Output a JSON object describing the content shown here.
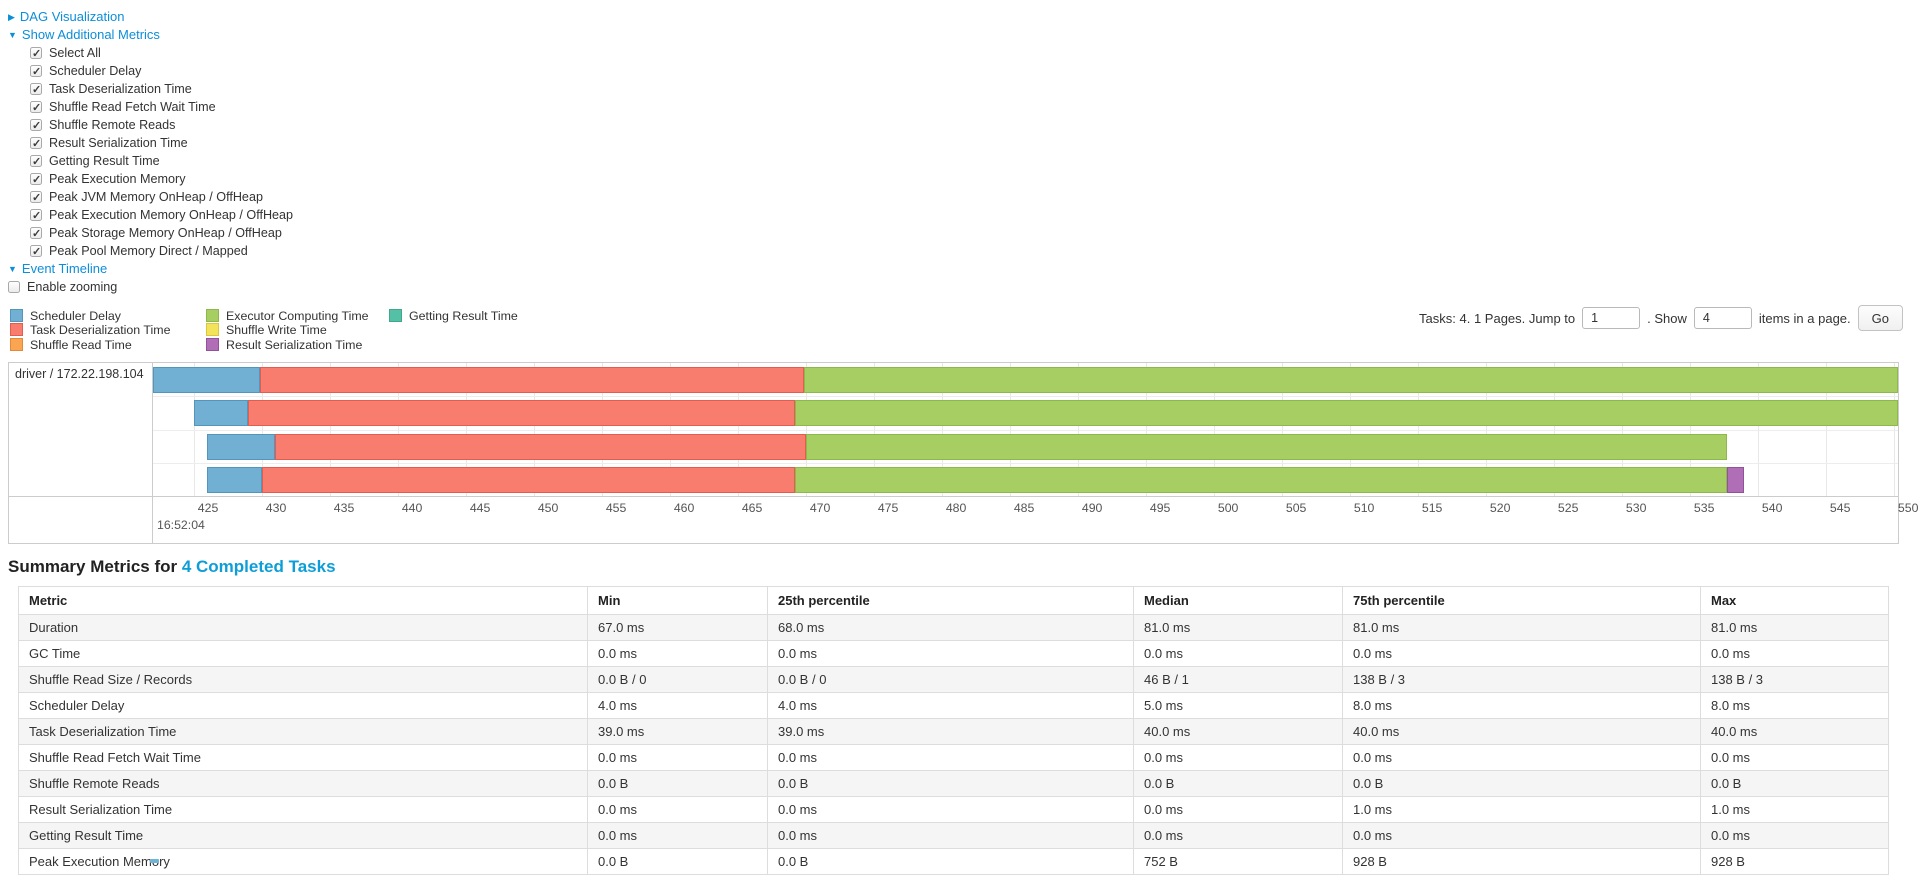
{
  "sections": {
    "dag": {
      "arrow": "▶",
      "label": "DAG Visualization"
    },
    "metrics": {
      "arrow": "▼",
      "label": "Show Additional Metrics"
    },
    "timeline": {
      "arrow": "▼",
      "label": "Event Timeline"
    }
  },
  "metric_checkboxes": [
    {
      "label": "Select All",
      "checked": true
    },
    {
      "label": "Scheduler Delay",
      "checked": true
    },
    {
      "label": "Task Deserialization Time",
      "checked": true
    },
    {
      "label": "Shuffle Read Fetch Wait Time",
      "checked": true
    },
    {
      "label": "Shuffle Remote Reads",
      "checked": true
    },
    {
      "label": "Result Serialization Time",
      "checked": true
    },
    {
      "label": "Getting Result Time",
      "checked": true
    },
    {
      "label": "Peak Execution Memory",
      "checked": true
    },
    {
      "label": "Peak JVM Memory OnHeap / OffHeap",
      "checked": true
    },
    {
      "label": "Peak Execution Memory OnHeap / OffHeap",
      "checked": true
    },
    {
      "label": "Peak Storage Memory OnHeap / OffHeap",
      "checked": true
    },
    {
      "label": "Peak Pool Memory Direct / Mapped",
      "checked": true
    }
  ],
  "enable_zooming": {
    "label": "Enable zooming",
    "checked": false
  },
  "legend": {
    "columns": [
      [
        {
          "label": "Scheduler Delay",
          "color_key": "scheduler_delay"
        },
        {
          "label": "Task Deserialization Time",
          "color_key": "task_deserialization"
        },
        {
          "label": "Shuffle Read Time",
          "color_key": "shuffle_read"
        }
      ],
      [
        {
          "label": "Executor Computing Time",
          "color_key": "executor_computing"
        },
        {
          "label": "Shuffle Write Time",
          "color_key": "shuffle_write"
        },
        {
          "label": "Result Serialization Time",
          "color_key": "result_serialization"
        }
      ],
      [
        {
          "label": "Getting Result Time",
          "color_key": "getting_result"
        }
      ]
    ]
  },
  "pagination": {
    "prefix": "Tasks: 4. 1 Pages. Jump to",
    "page_value": "1",
    "mid": ". Show",
    "show_value": "4",
    "suffix": "items in a page.",
    "go_label": "Go"
  },
  "chart_data": {
    "type": "timeline",
    "row_label": "driver / 172.22.198.104",
    "axis": {
      "domain_start": 422.0,
      "domain_end": 550.3,
      "tick_start": 425,
      "tick_end": 550,
      "tick_step": 5,
      "major_label": "16:52:04",
      "unit": "ms"
    },
    "colors": {
      "scheduler_delay": {
        "fill": "#71AFD3",
        "border": "#5295BD"
      },
      "task_deserialization": {
        "fill": "#F97D6E",
        "border": "#E25D4E"
      },
      "shuffle_read": {
        "fill": "#FBA553",
        "border": "#E08A3C"
      },
      "executor_computing": {
        "fill": "#A6CE63",
        "border": "#8DB84B"
      },
      "shuffle_write": {
        "fill": "#F3E35B",
        "border": "#D9C83E"
      },
      "result_serialization": {
        "fill": "#AF6EB6",
        "border": "#92519A"
      },
      "getting_result": {
        "fill": "#55C0A5",
        "border": "#3FA98E"
      }
    },
    "tasks": [
      {
        "segments": [
          {
            "type": "scheduler_delay",
            "start": 422.0,
            "end": 429.9
          },
          {
            "type": "task_deserialization",
            "start": 429.9,
            "end": 469.9
          },
          {
            "type": "executor_computing",
            "start": 469.9,
            "end": 550.3
          }
        ]
      },
      {
        "segments": [
          {
            "type": "scheduler_delay",
            "start": 425.0,
            "end": 429.0
          },
          {
            "type": "task_deserialization",
            "start": 429.0,
            "end": 469.2
          },
          {
            "type": "executor_computing",
            "start": 469.2,
            "end": 550.3
          }
        ]
      },
      {
        "segments": [
          {
            "type": "scheduler_delay",
            "start": 426.0,
            "end": 431.0
          },
          {
            "type": "task_deserialization",
            "start": 431.0,
            "end": 470.0
          },
          {
            "type": "executor_computing",
            "start": 470.0,
            "end": 537.7
          }
        ]
      },
      {
        "segments": [
          {
            "type": "scheduler_delay",
            "start": 426.0,
            "end": 430.0
          },
          {
            "type": "task_deserialization",
            "start": 430.0,
            "end": 469.2
          },
          {
            "type": "executor_computing",
            "start": 469.2,
            "end": 537.7
          },
          {
            "type": "result_serialization",
            "start": 537.7,
            "end": 539.0
          }
        ]
      }
    ]
  },
  "summary": {
    "title_prefix": "Summary Metrics for ",
    "title_link": "4 Completed Tasks",
    "table": {
      "headers": [
        "Metric",
        "Min",
        "25th percentile",
        "Median",
        "75th percentile",
        "Max"
      ],
      "rows": [
        [
          "Duration",
          "67.0 ms",
          "68.0 ms",
          "81.0 ms",
          "81.0 ms",
          "81.0 ms"
        ],
        [
          "GC Time",
          "0.0 ms",
          "0.0 ms",
          "0.0 ms",
          "0.0 ms",
          "0.0 ms"
        ],
        [
          "Shuffle Read Size / Records",
          "0.0 B / 0",
          "0.0 B / 0",
          "46 B / 1",
          "138 B / 3",
          "138 B / 3"
        ],
        [
          "Scheduler Delay",
          "4.0 ms",
          "4.0 ms",
          "5.0 ms",
          "8.0 ms",
          "8.0 ms"
        ],
        [
          "Task Deserialization Time",
          "39.0 ms",
          "39.0 ms",
          "40.0 ms",
          "40.0 ms",
          "40.0 ms"
        ],
        [
          "Shuffle Read Fetch Wait Time",
          "0.0 ms",
          "0.0 ms",
          "0.0 ms",
          "0.0 ms",
          "0.0 ms"
        ],
        [
          "Shuffle Remote Reads",
          "0.0 B",
          "0.0 B",
          "0.0 B",
          "0.0 B",
          "0.0 B"
        ],
        [
          "Result Serialization Time",
          "0.0 ms",
          "0.0 ms",
          "0.0 ms",
          "1.0 ms",
          "1.0 ms"
        ],
        [
          "Getting Result Time",
          "0.0 ms",
          "0.0 ms",
          "0.0 ms",
          "0.0 ms",
          "0.0 ms"
        ],
        [
          "Peak Execution Memory",
          "0.0 B",
          "0.0 B",
          "752 B",
          "928 B",
          "928 B"
        ]
      ]
    }
  }
}
